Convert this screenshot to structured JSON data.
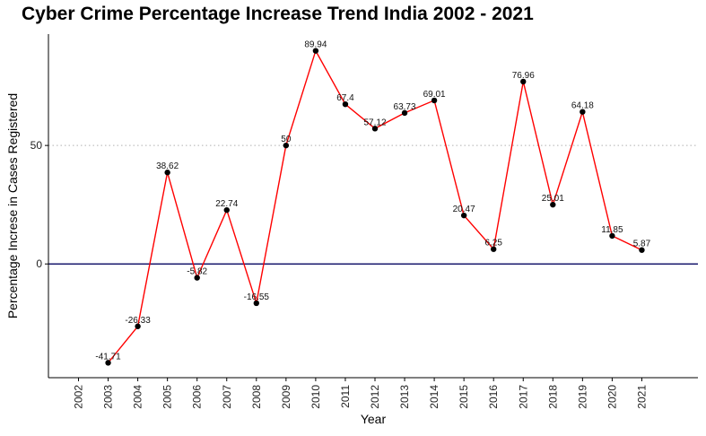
{
  "chart_data": {
    "type": "line",
    "title": "Cyber Crime Percentage Increase Trend India 2002 - 2021",
    "xlabel": "Year",
    "ylabel": "Percentage Increse in Cases Registered",
    "categories": [
      "2002",
      "2003",
      "2004",
      "2005",
      "2006",
      "2007",
      "2008",
      "2009",
      "2010",
      "2011",
      "2012",
      "2013",
      "2014",
      "2015",
      "2016",
      "2017",
      "2018",
      "2019",
      "2020",
      "2021"
    ],
    "series": [
      {
        "x": [
          "2003",
          "2004",
          "2005",
          "2006",
          "2007",
          "2008",
          "2009",
          "2010",
          "2011",
          "2012",
          "2013",
          "2014",
          "2015",
          "2016",
          "2017",
          "2018",
          "2019",
          "2020",
          "2021"
        ],
        "values": [
          -41.71,
          -26.33,
          38.62,
          -5.82,
          22.74,
          -16.55,
          50,
          89.94,
          67.4,
          57.12,
          63.73,
          69.01,
          20.47,
          6.25,
          76.96,
          25.01,
          64.18,
          11.85,
          5.87
        ],
        "labels": [
          "-41.71",
          "-26.33",
          "38.62",
          "-5.82",
          "22.74",
          "-16.55",
          "50",
          "89.94",
          "67.4",
          "57.12",
          "63.73",
          "69.01",
          "20.47",
          "6.25",
          "76.96",
          "25.01",
          "64.18",
          "11.85",
          "5.87"
        ]
      }
    ],
    "ylim": [
      -48,
      97
    ],
    "yticks": [
      0,
      50
    ],
    "ytick_labels": [
      "0",
      "50"
    ],
    "reference_lines": [
      {
        "y": 0,
        "style": "solid",
        "color": "#1a1a6e"
      },
      {
        "y": 50,
        "style": "dotted",
        "color": "#b0b0b0"
      }
    ],
    "colors": {
      "line": "#ff0000",
      "point": "#000000"
    },
    "grid": false,
    "legend": "none"
  }
}
